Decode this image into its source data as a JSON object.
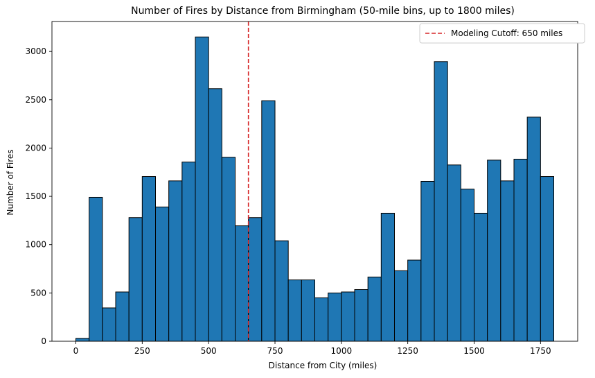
{
  "chart_data": {
    "type": "bar",
    "title": "Number of Fires by Distance from Birmingham (50-mile bins, up to 1800 miles)",
    "xlabel": "Distance from City (miles)",
    "ylabel": "Number of Fires",
    "bin_width": 50,
    "xlim": [
      -90,
      1890
    ],
    "ylim": [
      0,
      3310
    ],
    "xticks": [
      0,
      250,
      500,
      750,
      1000,
      1250,
      1500,
      1750
    ],
    "yticks": [
      0,
      500,
      1000,
      1500,
      2000,
      2500,
      3000
    ],
    "bins": [
      {
        "start": 0,
        "end": 50,
        "count": 30
      },
      {
        "start": 50,
        "end": 100,
        "count": 1490
      },
      {
        "start": 100,
        "end": 150,
        "count": 345
      },
      {
        "start": 150,
        "end": 200,
        "count": 510
      },
      {
        "start": 200,
        "end": 250,
        "count": 1280
      },
      {
        "start": 250,
        "end": 300,
        "count": 1705
      },
      {
        "start": 300,
        "end": 350,
        "count": 1390
      },
      {
        "start": 350,
        "end": 400,
        "count": 1660
      },
      {
        "start": 400,
        "end": 450,
        "count": 1855
      },
      {
        "start": 450,
        "end": 500,
        "count": 3150
      },
      {
        "start": 500,
        "end": 550,
        "count": 2615
      },
      {
        "start": 550,
        "end": 600,
        "count": 1905
      },
      {
        "start": 600,
        "end": 650,
        "count": 1195
      },
      {
        "start": 650,
        "end": 700,
        "count": 1280
      },
      {
        "start": 700,
        "end": 750,
        "count": 2490
      },
      {
        "start": 750,
        "end": 800,
        "count": 1040
      },
      {
        "start": 800,
        "end": 850,
        "count": 635
      },
      {
        "start": 850,
        "end": 900,
        "count": 635
      },
      {
        "start": 900,
        "end": 950,
        "count": 450
      },
      {
        "start": 950,
        "end": 1000,
        "count": 500
      },
      {
        "start": 1000,
        "end": 1050,
        "count": 510
      },
      {
        "start": 1050,
        "end": 1100,
        "count": 535
      },
      {
        "start": 1100,
        "end": 1150,
        "count": 665
      },
      {
        "start": 1150,
        "end": 1200,
        "count": 1325
      },
      {
        "start": 1200,
        "end": 1250,
        "count": 730
      },
      {
        "start": 1250,
        "end": 1300,
        "count": 840
      },
      {
        "start": 1300,
        "end": 1350,
        "count": 1655
      },
      {
        "start": 1350,
        "end": 1400,
        "count": 2895
      },
      {
        "start": 1400,
        "end": 1450,
        "count": 1825
      },
      {
        "start": 1450,
        "end": 1500,
        "count": 1575
      },
      {
        "start": 1500,
        "end": 1550,
        "count": 1325
      },
      {
        "start": 1550,
        "end": 1600,
        "count": 1875
      },
      {
        "start": 1600,
        "end": 1650,
        "count": 1660
      },
      {
        "start": 1650,
        "end": 1700,
        "count": 1885
      },
      {
        "start": 1700,
        "end": 1750,
        "count": 2320
      },
      {
        "start": 1750,
        "end": 1800,
        "count": 1705
      }
    ],
    "cutoff": {
      "value": 650,
      "label": "Modeling Cutoff: 650 miles"
    },
    "legend_position": "top-right",
    "grid": false,
    "colors": {
      "bar_fill": "#1f77b4",
      "bar_edge": "#000000",
      "cutoff_line": "#d62728",
      "axis": "#000000"
    }
  }
}
